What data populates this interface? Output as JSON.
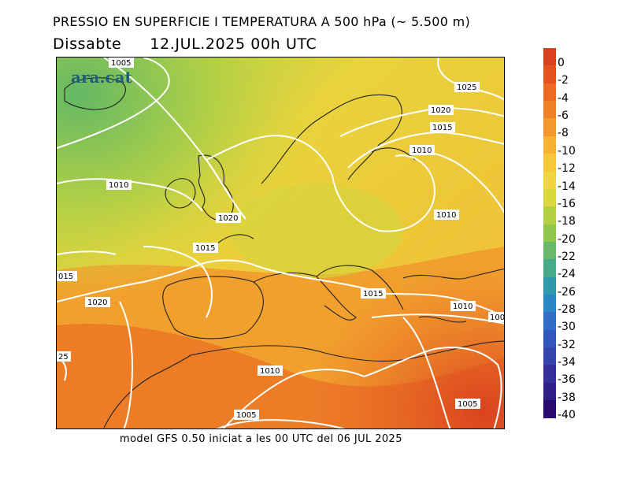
{
  "header": {
    "title": "PRESSIO EN SUPERFICIE I TEMPERATURA A 500 hPa (~ 5.500 m)",
    "day": "Dissabte",
    "datetime": "12.JUL.2025 00h UTC"
  },
  "footer": {
    "model_info": "model GFS 0.50 iniciat a les 00 UTC del 06 JUL 2025"
  },
  "brand": {
    "logo_text": "ara.cat"
  },
  "colorbar": {
    "labels": [
      "0",
      "-2",
      "-4",
      "-6",
      "-8",
      "-10",
      "-12",
      "-14",
      "-16",
      "-18",
      "-20",
      "-22",
      "-24",
      "-26",
      "-28",
      "-30",
      "-32",
      "-34",
      "-36",
      "-38",
      "-40"
    ],
    "colors": [
      "#d9421e",
      "#e5531f",
      "#ec6a24",
      "#f08028",
      "#f4982d",
      "#f7b232",
      "#f5c838",
      "#eed63c",
      "#d9d73c",
      "#b5cf44",
      "#8fc64c",
      "#6ab96a",
      "#48aa8a",
      "#2f9aa8",
      "#2b86c4",
      "#2f6dc9",
      "#3157bd",
      "#3445ad",
      "#352f9a",
      "#2f1f86",
      "#280a6e"
    ]
  },
  "isobar_labels": [
    "1005",
    "1025",
    "1020",
    "1015",
    "1010",
    "1010",
    "1010",
    "1020",
    "1015",
    "015",
    "1020",
    "1015",
    "1010",
    "100",
    "25",
    "1010",
    "1005",
    "1005"
  ]
}
